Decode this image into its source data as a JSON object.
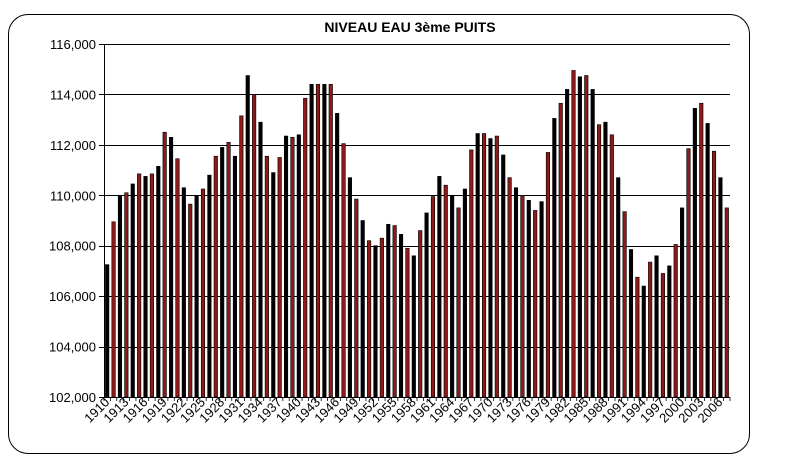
{
  "chart_data": {
    "type": "bar",
    "title": "NIVEAU EAU 3ème PUITS",
    "xlabel": "",
    "ylabel": "",
    "ylim": [
      102000,
      116000
    ],
    "ytick_step": 2000,
    "yticks": [
      "102,000",
      "104,000",
      "106,000",
      "108,000",
      "110,000",
      "112,000",
      "114,000",
      "116,000"
    ],
    "x_tick_labels": [
      "1910",
      "1913",
      "1916",
      "1919",
      "1922",
      "1925",
      "1928",
      "1931",
      "1934",
      "1937",
      "1940",
      "1943",
      "1946",
      "1949",
      "1952",
      "1955",
      "1958",
      "1961",
      "1964",
      "1967",
      "1970",
      "1973",
      "1976",
      "1979",
      "1982",
      "1985",
      "1988",
      "1991",
      "1994",
      "1997",
      "2000",
      "2003",
      "2006"
    ],
    "grid": true,
    "legend": "none",
    "colors": {
      "bar_a": "#000000",
      "bar_b": "#8B1A1A",
      "grid": "#000000",
      "background": "#ffffff"
    },
    "categories": [
      1910,
      1911,
      1912,
      1913,
      1914,
      1915,
      1916,
      1917,
      1918,
      1919,
      1920,
      1921,
      1922,
      1923,
      1924,
      1925,
      1926,
      1927,
      1928,
      1929,
      1930,
      1931,
      1932,
      1933,
      1934,
      1935,
      1936,
      1937,
      1938,
      1939,
      1940,
      1941,
      1942,
      1943,
      1944,
      1945,
      1946,
      1947,
      1948,
      1949,
      1950,
      1951,
      1952,
      1953,
      1954,
      1955,
      1956,
      1957,
      1958,
      1959,
      1960,
      1961,
      1962,
      1963,
      1964,
      1965,
      1966,
      1967,
      1968,
      1969,
      1970,
      1971,
      1972,
      1973,
      1974,
      1975,
      1976,
      1977,
      1978,
      1979,
      1980,
      1981,
      1982,
      1983,
      1984,
      1985,
      1986,
      1987,
      1988,
      1989,
      1990,
      1991,
      1992,
      1993,
      1994,
      1995,
      1996,
      1997,
      1998,
      1999,
      2000,
      2001,
      2002,
      2003,
      2004,
      2005,
      2006,
      2007
    ],
    "values": [
      107250,
      108950,
      110000,
      110100,
      110450,
      110850,
      110750,
      110850,
      111150,
      112500,
      112300,
      111450,
      110300,
      109650,
      110000,
      110250,
      110800,
      111550,
      111900,
      112100,
      111550,
      113150,
      114750,
      114000,
      112900,
      111550,
      110900,
      111500,
      112350,
      112300,
      112400,
      113850,
      114400,
      114400,
      114400,
      114400,
      113250,
      112050,
      110700,
      109850,
      109000,
      108200,
      108000,
      108300,
      108850,
      108800,
      108450,
      107900,
      107600,
      108600,
      109300,
      109950,
      110750,
      110400,
      110000,
      109500,
      110250,
      111800,
      112450,
      112450,
      112250,
      112350,
      111600,
      110700,
      110300,
      110000,
      109800,
      109400,
      109750,
      111700,
      113050,
      113650,
      114200,
      114950,
      114700,
      114750,
      114200,
      112800,
      112900,
      112400,
      110700,
      109350,
      107850,
      106750,
      106400,
      107350,
      107600,
      106900,
      107200,
      108050,
      109500,
      111850,
      113450,
      113650,
      112850,
      111750,
      110700,
      109500
    ]
  }
}
